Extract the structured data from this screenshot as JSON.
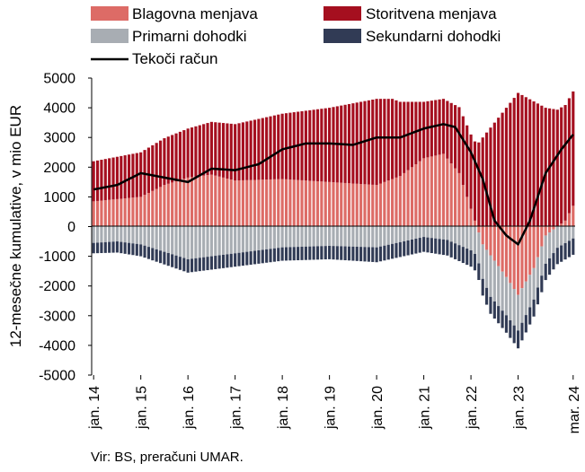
{
  "chart_data": {
    "type": "bar",
    "subtype": "stacked bar with line overlay",
    "ylabel": "12-mesečne kumulative, v mio EUR",
    "ylim": [
      -5000,
      5000
    ],
    "yticks": [
      5000,
      4000,
      3000,
      2000,
      1000,
      0,
      -1000,
      -2000,
      -3000,
      -4000,
      -5000
    ],
    "y_tick_labels": [
      "5000",
      "4000",
      "3000",
      "2000",
      "1000",
      "0",
      "-1000",
      "-2000",
      "-3000",
      "-4000",
      "-5000"
    ],
    "x_tick_labels": [
      "jan. 14",
      "jan. 15",
      "jan. 16",
      "jan. 17",
      "jan. 18",
      "jan. 19",
      "jan. 20",
      "jan. 21",
      "jan. 22",
      "jan. 23",
      "mar. 24"
    ],
    "x_tick_dates": [
      "2014-01",
      "2015-01",
      "2016-01",
      "2017-01",
      "2018-01",
      "2019-01",
      "2020-01",
      "2021-01",
      "2022-01",
      "2023-01",
      "2024-03"
    ],
    "period": {
      "start": "2014-01",
      "end": "2024-03",
      "frequency": "monthly"
    },
    "legend_position": "top",
    "grid": false,
    "source": "Vir: BS, preračuni UMAR.",
    "colors": {
      "Blagovna menjava": "#dd6b66",
      "Storitvena menjava": "#a50f1f",
      "Primarni dohodki": "#a8adb3",
      "Sekundarni dohodki": "#313b55",
      "Tekoči račun": "#000000"
    },
    "legend": [
      "Blagovna menjava",
      "Storitvena menjava",
      "Primarni dohodki",
      "Sekundarni dohodki",
      "Tekoči račun"
    ],
    "series": [
      {
        "name": "Blagovna menjava",
        "kind": "bar",
        "anchors": [
          [
            "2014-01",
            850
          ],
          [
            "2015-01",
            1000
          ],
          [
            "2015-07",
            1400
          ],
          [
            "2016-01",
            1650
          ],
          [
            "2016-07",
            1750
          ],
          [
            "2017-01",
            1550
          ],
          [
            "2018-01",
            1600
          ],
          [
            "2019-01",
            1500
          ],
          [
            "2020-01",
            1400
          ],
          [
            "2020-07",
            1700
          ],
          [
            "2021-01",
            2300
          ],
          [
            "2021-06",
            2450
          ],
          [
            "2021-10",
            1800
          ],
          [
            "2022-01",
            600
          ],
          [
            "2022-04",
            -600
          ],
          [
            "2022-10",
            -1700
          ],
          [
            "2023-01",
            -2300
          ],
          [
            "2023-05",
            -1400
          ],
          [
            "2023-08",
            -300
          ],
          [
            "2024-01",
            200
          ],
          [
            "2024-03",
            700
          ]
        ]
      },
      {
        "name": "Storitvena menjava",
        "kind": "bar",
        "anchors": [
          [
            "2014-01",
            1350
          ],
          [
            "2015-01",
            1500
          ],
          [
            "2016-01",
            1650
          ],
          [
            "2017-01",
            1900
          ],
          [
            "2018-01",
            2200
          ],
          [
            "2019-01",
            2500
          ],
          [
            "2020-01",
            2900
          ],
          [
            "2020-05",
            2700
          ],
          [
            "2021-01",
            1900
          ],
          [
            "2021-06",
            1850
          ],
          [
            "2022-01",
            2500
          ],
          [
            "2022-07",
            3500
          ],
          [
            "2023-01",
            4500
          ],
          [
            "2023-08",
            4000
          ],
          [
            "2024-03",
            3850
          ]
        ]
      },
      {
        "name": "Primarni dohodki",
        "kind": "bar",
        "anchors": [
          [
            "2014-01",
            -550
          ],
          [
            "2014-07",
            -500
          ],
          [
            "2015-01",
            -600
          ],
          [
            "2016-01",
            -1100
          ],
          [
            "2017-01",
            -900
          ],
          [
            "2018-01",
            -700
          ],
          [
            "2019-01",
            -650
          ],
          [
            "2020-01",
            -700
          ],
          [
            "2021-01",
            -350
          ],
          [
            "2021-07",
            -450
          ],
          [
            "2022-01",
            -800
          ],
          [
            "2022-06",
            -1400
          ],
          [
            "2023-01",
            -1200
          ],
          [
            "2023-08",
            -950
          ],
          [
            "2024-03",
            -400
          ]
        ]
      },
      {
        "name": "Sekundarni dohodki",
        "kind": "bar",
        "anchors": [
          [
            "2014-01",
            -350
          ],
          [
            "2015-01",
            -400
          ],
          [
            "2016-01",
            -450
          ],
          [
            "2017-01",
            -450
          ],
          [
            "2018-01",
            -450
          ],
          [
            "2019-01",
            -450
          ],
          [
            "2020-01",
            -500
          ],
          [
            "2021-01",
            -500
          ],
          [
            "2022-01",
            -550
          ],
          [
            "2023-01",
            -600
          ],
          [
            "2023-08",
            -550
          ],
          [
            "2024-03",
            -550
          ]
        ]
      },
      {
        "name": "Tekoči račun",
        "kind": "line",
        "anchors": [
          [
            "2014-01",
            1250
          ],
          [
            "2014-07",
            1400
          ],
          [
            "2015-01",
            1800
          ],
          [
            "2015-07",
            1650
          ],
          [
            "2016-01",
            1500
          ],
          [
            "2016-07",
            1950
          ],
          [
            "2017-01",
            1900
          ],
          [
            "2017-07",
            2100
          ],
          [
            "2018-01",
            2600
          ],
          [
            "2018-07",
            2800
          ],
          [
            "2019-01",
            2800
          ],
          [
            "2019-07",
            2750
          ],
          [
            "2020-01",
            3000
          ],
          [
            "2020-07",
            3000
          ],
          [
            "2021-01",
            3300
          ],
          [
            "2021-06",
            3450
          ],
          [
            "2021-09",
            3350
          ],
          [
            "2022-01",
            2500
          ],
          [
            "2022-04",
            1600
          ],
          [
            "2022-07",
            200
          ],
          [
            "2022-10",
            -300
          ],
          [
            "2023-01",
            -600
          ],
          [
            "2023-04",
            200
          ],
          [
            "2023-08",
            1800
          ],
          [
            "2023-12",
            2600
          ],
          [
            "2024-03",
            3100
          ]
        ]
      }
    ]
  }
}
